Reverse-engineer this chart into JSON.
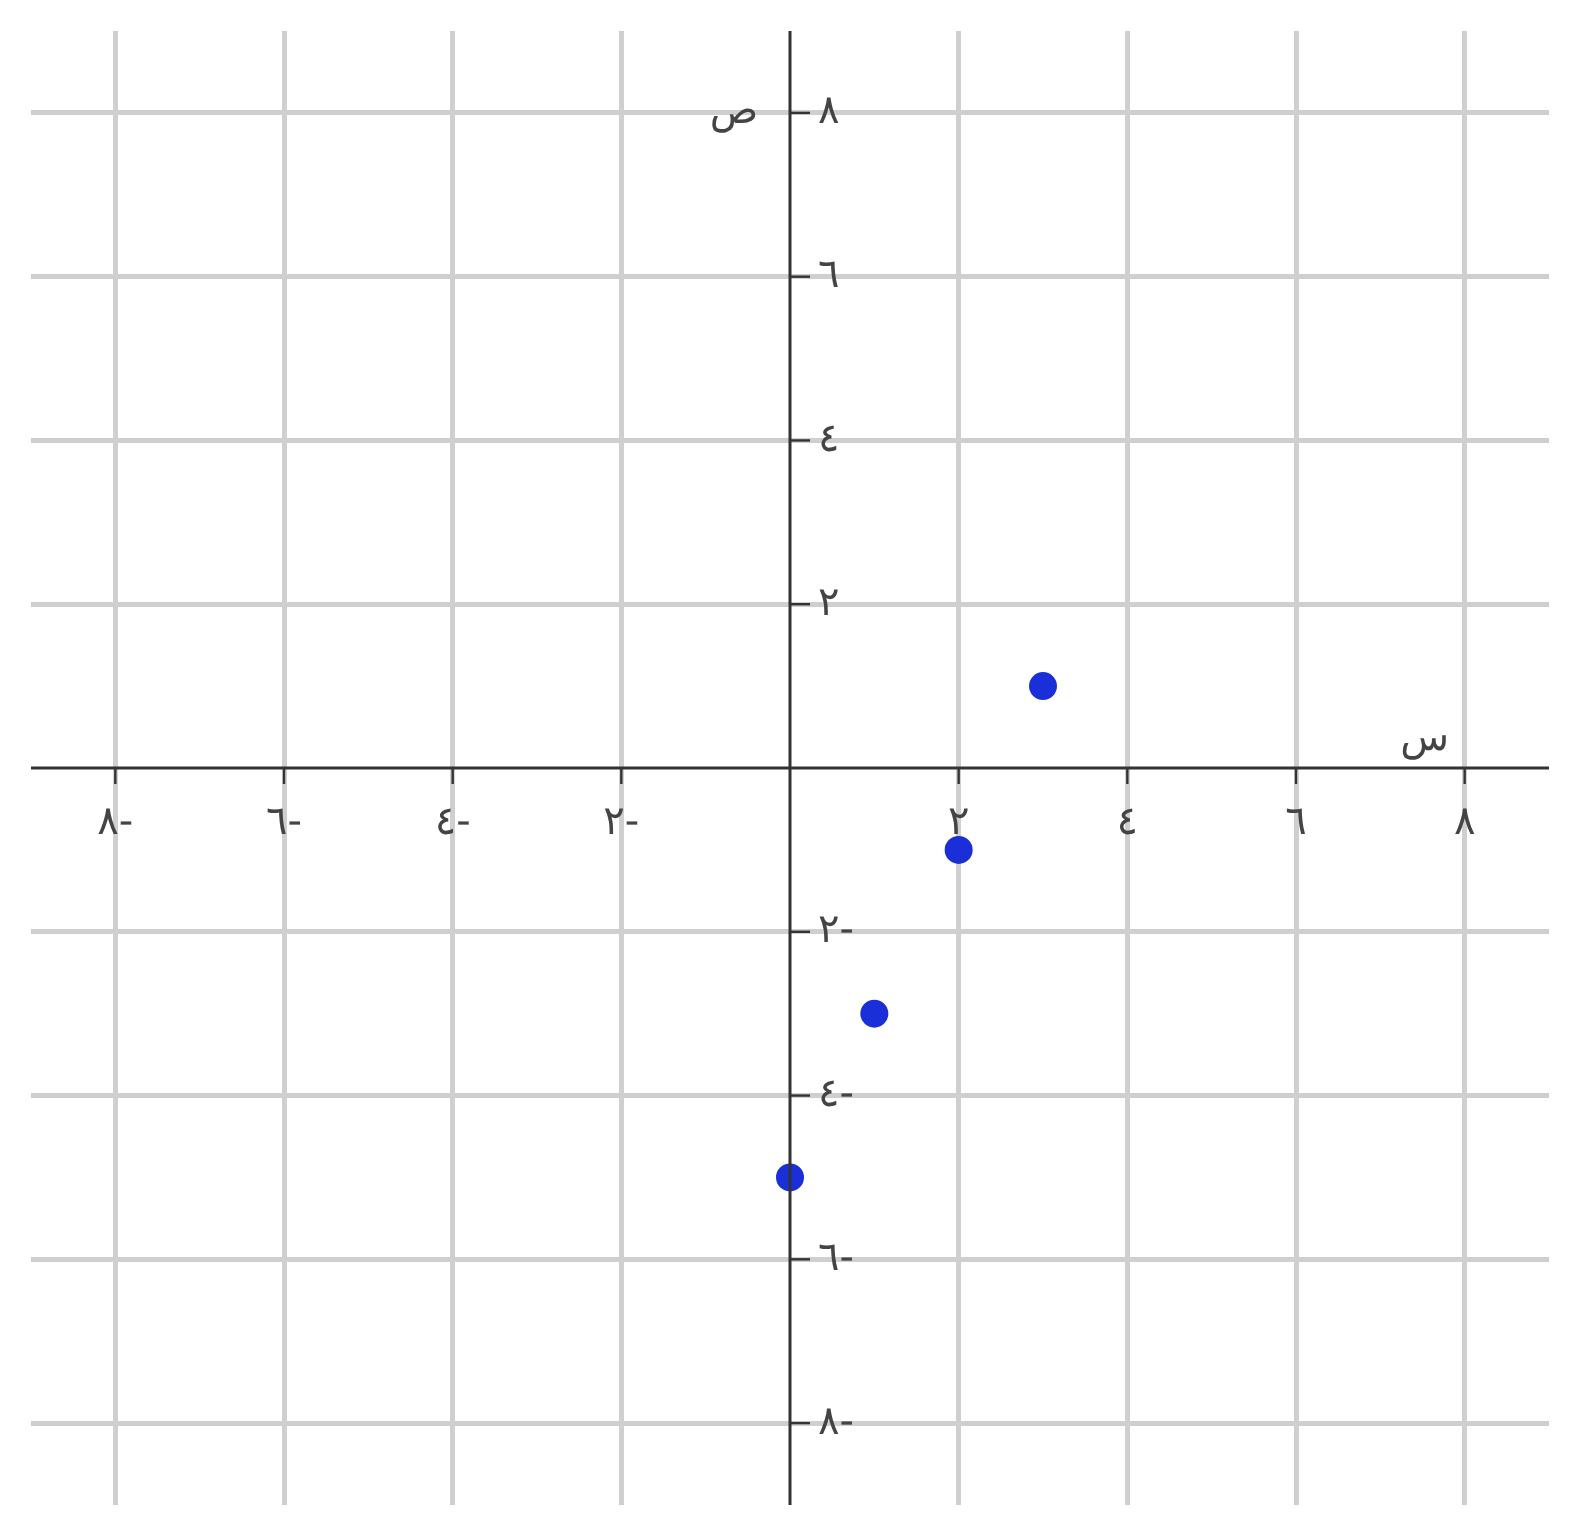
{
  "chart_data": {
    "type": "scatter",
    "xlabel": "س",
    "ylabel": "ص",
    "x": [
      3,
      2,
      1,
      0
    ],
    "series": [
      {
        "color": "#1a2fd8",
        "values": [
          1,
          -1,
          -3,
          -5
        ]
      }
    ],
    "xlim": [
      -9,
      9
    ],
    "ylim": [
      -9,
      9
    ],
    "xticks": [
      {
        "value": -8,
        "label": "-٨"
      },
      {
        "value": -6,
        "label": "-٦"
      },
      {
        "value": -4,
        "label": "-٤"
      },
      {
        "value": -2,
        "label": "-٢"
      },
      {
        "value": 2,
        "label": "٢"
      },
      {
        "value": 4,
        "label": "٤"
      },
      {
        "value": 6,
        "label": "٦"
      },
      {
        "value": 8,
        "label": "٨"
      }
    ],
    "yticks": [
      {
        "value": -8,
        "label": "-٨"
      },
      {
        "value": -6,
        "label": "-٦"
      },
      {
        "value": -4,
        "label": "-٤"
      },
      {
        "value": -2,
        "label": "-٢"
      },
      {
        "value": 2,
        "label": "٢"
      },
      {
        "value": 4,
        "label": "٤"
      },
      {
        "value": 6,
        "label": "٦"
      },
      {
        "value": 8,
        "label": "٨"
      }
    ],
    "grid": true,
    "legend": false,
    "marker": "circle"
  }
}
